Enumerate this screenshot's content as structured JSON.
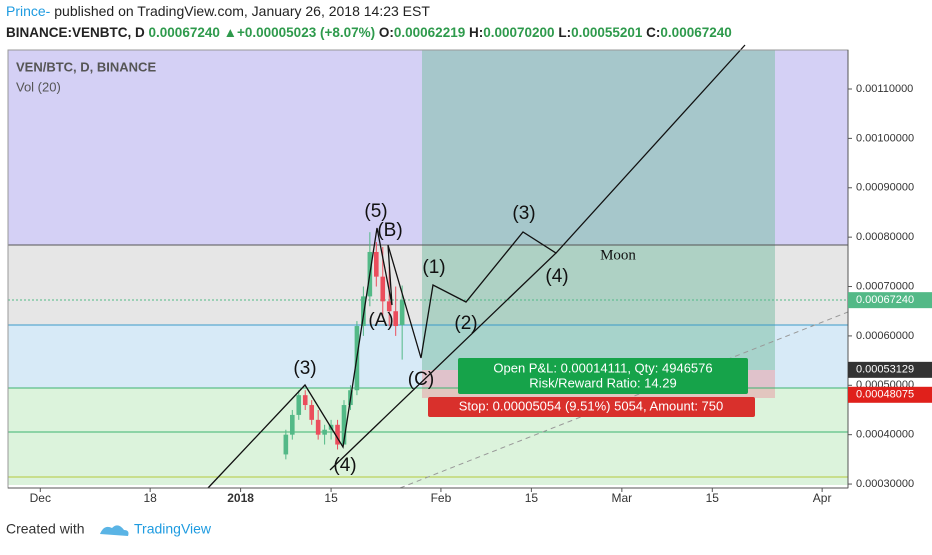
{
  "header": {
    "author": "Prince-",
    "published": " published on TradingView.com, January 26, 2018 14:23 EST",
    "symbol": "BINANCE:VENBTC, D",
    "last": "0.00067240",
    "arrow": "▲",
    "change": "+0.00005023 (+8.07%)",
    "o_label": "O:",
    "o": "0.00062219",
    "h_label": "H:",
    "h": "0.00070200",
    "l_label": "L:",
    "l": "0.00055201",
    "c_label": "C:",
    "c": "0.00067240"
  },
  "chart_data": {
    "type": "candlestick",
    "title": "VEN/BTC, D, BINANCE",
    "subtitle": "Vol (20)",
    "x": [
      "2018-01-08",
      "2018-01-09",
      "2018-01-10",
      "2018-01-11",
      "2018-01-12",
      "2018-01-13",
      "2018-01-14",
      "2018-01-15",
      "2018-01-16",
      "2018-01-17",
      "2018-01-18",
      "2018-01-19",
      "2018-01-20",
      "2018-01-21",
      "2018-01-22",
      "2018-01-23",
      "2018-01-24",
      "2018-01-25",
      "2018-01-26"
    ],
    "open": [
      0.00036,
      0.0004,
      0.00044,
      0.00048,
      0.00046,
      0.00043,
      0.0004,
      0.00041,
      0.00042,
      0.00038,
      0.00046,
      0.00049,
      0.00062,
      0.00068,
      0.00077,
      0.00072,
      0.00067,
      0.00065,
      0.00062219
    ],
    "high": [
      0.00041,
      0.00045,
      0.00049,
      0.00049,
      0.00047,
      0.00045,
      0.00042,
      0.00043,
      0.00043,
      0.00047,
      0.0005,
      0.00063,
      0.0007,
      0.00081,
      0.00079,
      0.00078,
      0.00074,
      0.0007,
      0.000702
    ],
    "low": [
      0.00035,
      0.00039,
      0.00043,
      0.00045,
      0.00042,
      0.00039,
      0.00038,
      0.00039,
      0.00037,
      0.00038,
      0.00045,
      0.00048,
      0.0006,
      0.00066,
      0.0007,
      0.00064,
      0.00062,
      0.0006,
      0.00055201
    ],
    "close": [
      0.0004,
      0.00044,
      0.00048,
      0.00046,
      0.00043,
      0.0004,
      0.00041,
      0.00042,
      0.00038,
      0.00046,
      0.00049,
      0.00062,
      0.00068,
      0.00077,
      0.00072,
      0.00067,
      0.00065,
      0.00062,
      0.0006724
    ],
    "up_color": "#53b987",
    "down_color": "#eb4d5c",
    "xlim": [
      "2017-11-26",
      "2018-04-05"
    ],
    "xticks": [
      {
        "value": "2017-12-01",
        "label": "Dec"
      },
      {
        "value": "2017-12-18",
        "label": "18"
      },
      {
        "value": "2018-01-01",
        "label": "2018"
      },
      {
        "value": "2018-01-15",
        "label": "15"
      },
      {
        "value": "2018-02-01",
        "label": "Feb"
      },
      {
        "value": "2018-02-15",
        "label": "15"
      },
      {
        "value": "2018-03-01",
        "label": "Mar"
      },
      {
        "value": "2018-03-15",
        "label": "15"
      },
      {
        "value": "2018-04-01",
        "label": "Apr"
      }
    ],
    "ylim": [
      0.000292,
      0.001179
    ],
    "yticks": [
      {
        "value": 0.0003,
        "label": "0.00030000"
      },
      {
        "value": 0.0004,
        "label": "0.00040000"
      },
      {
        "value": 0.0005,
        "label": "0.00050000"
      },
      {
        "value": 0.0006,
        "label": "0.00060000"
      },
      {
        "value": 0.0007,
        "label": "0.00070000"
      },
      {
        "value": 0.0008,
        "label": "0.00080000"
      },
      {
        "value": 0.0009,
        "label": "0.00090000"
      },
      {
        "value": 0.001,
        "label": "0.00100000"
      },
      {
        "value": 0.0011,
        "label": "0.00110000"
      }
    ],
    "price_labels": [
      {
        "value": 0.0006724,
        "label": "0.00067240",
        "color": "#53b987"
      },
      {
        "value": 0.00053129,
        "label": "0.00053129",
        "color": "#333333"
      },
      {
        "value": 0.00048075,
        "label": "0.00048075",
        "color": "#e0201b"
      }
    ],
    "annotations": [
      "(5)",
      "(B)",
      "(A)",
      "(3)",
      "(4)",
      "(C)",
      "(1)",
      "(2)",
      "(3)",
      "(4)",
      "Moon"
    ],
    "position": {
      "pnl": "Open P&L: 0.00014111, Qty: 4946576",
      "ratio": "Risk/Reward Ratio: 14.29",
      "stop": "Stop: 0.00005054 (9.51%) 5054, Amount: 750"
    }
  },
  "footer": {
    "created": "Created with",
    "brand": "TradingView"
  }
}
